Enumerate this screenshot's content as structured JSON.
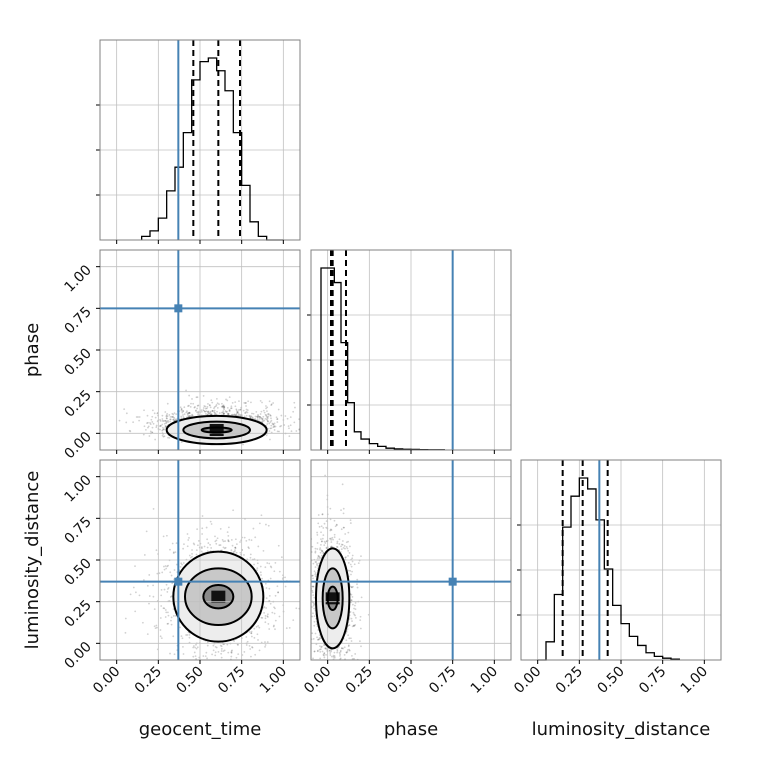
{
  "chart_data": {
    "type": "corner",
    "parameters": [
      "geocent_time",
      "phase",
      "luminosity_distance"
    ],
    "range": [
      -0.1,
      1.1
    ],
    "ticks": [
      0.0,
      0.25,
      0.5,
      0.75,
      1.0
    ],
    "tick_labels": [
      "0.00",
      "0.25",
      "0.50",
      "0.75",
      "1.00"
    ],
    "colors": {
      "truth": "#4682b4",
      "hist": "#000000",
      "grid": "#c0c0c0"
    },
    "truths": {
      "geocent_time": 0.37,
      "phase": 0.75,
      "luminosity_distance": 0.37
    },
    "quantiles": {
      "geocent_time": [
        0.46,
        0.61,
        0.74
      ],
      "phase": [
        0.02,
        0.03,
        0.11
      ],
      "luminosity_distance": [
        0.15,
        0.27,
        0.42
      ]
    },
    "histograms": {
      "geocent_time": {
        "bin_edges": [
          0.15,
          0.2,
          0.25,
          0.3,
          0.35,
          0.4,
          0.45,
          0.5,
          0.55,
          0.6,
          0.65,
          0.7,
          0.75,
          0.8,
          0.85,
          0.9,
          0.95,
          1.0
        ],
        "counts": [
          0.02,
          0.05,
          0.12,
          0.27,
          0.4,
          0.59,
          0.88,
          0.98,
          1.0,
          0.93,
          0.82,
          0.59,
          0.3,
          0.1,
          0.02,
          0.0,
          0.0
        ]
      },
      "phase": {
        "bin_edges": [
          -0.04,
          0.0,
          0.04,
          0.08,
          0.12,
          0.16,
          0.2,
          0.25,
          0.3,
          0.35,
          0.4,
          0.45,
          0.5,
          0.55,
          0.6,
          0.7
        ],
        "counts": [
          1.0,
          1.0,
          0.92,
          0.59,
          0.26,
          0.1,
          0.06,
          0.035,
          0.02,
          0.01,
          0.006,
          0.004,
          0.003,
          0.002,
          0.001
        ]
      },
      "luminosity_distance": {
        "bin_edges": [
          0.0,
          0.05,
          0.1,
          0.15,
          0.2,
          0.25,
          0.3,
          0.35,
          0.4,
          0.45,
          0.5,
          0.55,
          0.6,
          0.65,
          0.7,
          0.75,
          0.8,
          0.85
        ],
        "counts": [
          0.0,
          0.1,
          0.36,
          0.73,
          0.9,
          1.0,
          0.94,
          0.77,
          0.5,
          0.3,
          0.2,
          0.13,
          0.08,
          0.04,
          0.02,
          0.01,
          0.005
        ]
      }
    },
    "joint": [
      {
        "x": "geocent_time",
        "y": "phase",
        "center": [
          0.6,
          0.02
        ],
        "contours": [
          {
            "rx": 0.09,
            "ry": 0.015
          },
          {
            "rx": 0.2,
            "ry": 0.05
          },
          {
            "rx": 0.3,
            "ry": 0.085
          }
        ]
      },
      {
        "x": "geocent_time",
        "y": "luminosity_distance",
        "center": [
          0.61,
          0.28
        ],
        "contours": [
          {
            "rx": 0.09,
            "ry": 0.07
          },
          {
            "rx": 0.2,
            "ry": 0.17
          },
          {
            "rx": 0.27,
            "ry": 0.27
          }
        ]
      },
      {
        "x": "phase",
        "y": "luminosity_distance",
        "center": [
          0.03,
          0.27
        ],
        "contours": [
          {
            "rx": 0.03,
            "ry": 0.07
          },
          {
            "rx": 0.06,
            "ry": 0.18
          },
          {
            "rx": 0.1,
            "ry": 0.3
          }
        ]
      }
    ]
  }
}
